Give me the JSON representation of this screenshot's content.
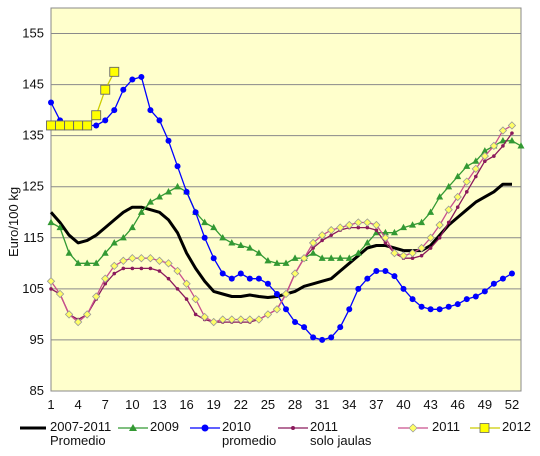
{
  "chart_data": {
    "type": "line",
    "title": "",
    "xlabel": "",
    "ylabel": "Euro/100 kg",
    "xlim": [
      1,
      53
    ],
    "ylim": [
      85,
      160
    ],
    "y_ticks": [
      85,
      95,
      105,
      115,
      125,
      135,
      145,
      155
    ],
    "x_ticks": [
      1,
      4,
      7,
      10,
      13,
      16,
      19,
      22,
      25,
      28,
      31,
      34,
      37,
      40,
      43,
      46,
      49,
      52
    ],
    "grid": "horizontal",
    "background": "#ffffcc",
    "legend_position": "bottom",
    "series": [
      {
        "name": "2007-2011\nPromedio",
        "color": "#000000",
        "marker": "none",
        "x": [
          1,
          2,
          3,
          4,
          5,
          6,
          7,
          8,
          9,
          10,
          11,
          12,
          13,
          14,
          15,
          16,
          17,
          18,
          19,
          20,
          21,
          22,
          23,
          24,
          25,
          26,
          27,
          28,
          29,
          30,
          31,
          32,
          33,
          34,
          35,
          36,
          37,
          38,
          39,
          40,
          41,
          42,
          43,
          44,
          45,
          46,
          47,
          48,
          49,
          50,
          51,
          52
        ],
        "y": [
          120,
          118,
          115.5,
          114,
          114.5,
          115.5,
          117,
          118.5,
          120,
          121,
          121,
          120.5,
          120,
          118.5,
          116,
          112,
          109,
          106.5,
          104.5,
          104,
          103.5,
          103.5,
          103.8,
          103.5,
          103.3,
          103.5,
          104,
          104.5,
          105.5,
          106,
          106.5,
          107,
          108.5,
          110,
          111.5,
          113,
          113.5,
          113.5,
          113,
          112.5,
          112.5,
          112.5,
          113.5,
          115.5,
          117.5,
          119,
          120.5,
          122,
          123,
          124,
          125.5,
          125.5
        ]
      },
      {
        "name": "2009",
        "color": "#339933",
        "marker": "triangle",
        "x": [
          1,
          2,
          3,
          4,
          5,
          6,
          7,
          8,
          9,
          10,
          11,
          12,
          13,
          14,
          15,
          16,
          17,
          18,
          19,
          20,
          21,
          22,
          23,
          24,
          25,
          26,
          27,
          28,
          29,
          30,
          31,
          32,
          33,
          34,
          35,
          36,
          37,
          38,
          39,
          40,
          41,
          42,
          43,
          44,
          45,
          46,
          47,
          48,
          49,
          50,
          51,
          52,
          53
        ],
        "y": [
          118,
          117,
          112,
          110,
          110,
          110,
          112,
          114,
          115,
          117,
          120,
          122,
          123,
          124,
          125,
          124,
          120,
          118,
          117,
          115,
          114,
          113.5,
          113,
          112,
          110.5,
          110,
          110,
          111,
          111,
          112,
          111,
          111,
          111,
          111,
          112,
          114,
          116,
          116,
          116,
          117,
          117.5,
          118,
          120,
          123,
          125,
          127,
          129,
          130,
          132,
          133,
          134,
          134,
          133
        ]
      },
      {
        "name": "2010\npromedio",
        "color": "#0000ff",
        "marker": "circle",
        "x": [
          1,
          2,
          3,
          4,
          5,
          6,
          7,
          8,
          9,
          10,
          11,
          12,
          13,
          14,
          15,
          16,
          17,
          18,
          19,
          20,
          21,
          22,
          23,
          24,
          25,
          26,
          27,
          28,
          29,
          30,
          31,
          32,
          33,
          34,
          35,
          36,
          37,
          38,
          39,
          40,
          41,
          42,
          43,
          44,
          45,
          46,
          47,
          48,
          49,
          50,
          51,
          52
        ],
        "y": [
          141.5,
          138,
          137,
          137,
          137,
          137,
          138,
          140,
          144,
          146,
          146.5,
          140,
          138,
          134,
          129,
          124,
          120,
          115,
          111,
          108,
          107,
          108,
          107,
          107,
          106,
          104,
          101,
          98.5,
          97.5,
          95.5,
          95,
          95.5,
          97.5,
          101,
          105,
          107,
          108.5,
          108.5,
          107.5,
          105,
          103,
          101.5,
          101,
          101,
          101.5,
          102,
          103,
          103.5,
          104.5,
          106,
          107,
          108
        ]
      },
      {
        "name": "2011\nsolo jaulas",
        "color": "#8b1a5c",
        "marker": "dot",
        "x": [
          1,
          2,
          3,
          4,
          5,
          6,
          7,
          8,
          9,
          10,
          11,
          12,
          13,
          14,
          15,
          16,
          17,
          18,
          19,
          20,
          21,
          22,
          23,
          24,
          25,
          26,
          27,
          28,
          29,
          30,
          31,
          32,
          33,
          34,
          35,
          36,
          37,
          38,
          39,
          40,
          41,
          42,
          43,
          44,
          45,
          46,
          47,
          48,
          49,
          50,
          51,
          52
        ],
        "y": [
          105,
          104,
          100,
          99,
          100,
          103,
          106,
          108,
          109,
          109,
          109,
          109,
          108.5,
          107,
          105,
          103,
          100,
          99,
          98.5,
          98.5,
          98.5,
          98.5,
          98.5,
          99,
          100,
          101,
          104,
          108,
          111,
          113,
          114.5,
          115.5,
          116.5,
          117,
          117,
          117,
          116.5,
          114,
          112,
          111,
          111,
          111.5,
          113,
          115,
          118,
          121,
          124,
          127,
          130,
          131,
          133,
          135.5
        ]
      },
      {
        "name": "2011",
        "color": "#c9508d",
        "marker": "diamond",
        "x": [
          1,
          2,
          3,
          4,
          5,
          6,
          7,
          8,
          9,
          10,
          11,
          12,
          13,
          14,
          15,
          16,
          17,
          18,
          19,
          20,
          21,
          22,
          23,
          24,
          25,
          26,
          27,
          28,
          29,
          30,
          31,
          32,
          33,
          34,
          35,
          36,
          37,
          38,
          39,
          40,
          41,
          42,
          43,
          44,
          45,
          46,
          47,
          48,
          49,
          50,
          51,
          52
        ],
        "y": [
          106.5,
          104,
          100,
          98.5,
          100,
          103.5,
          107,
          109.5,
          110.5,
          111,
          111,
          111,
          110.5,
          110,
          108.5,
          106,
          103,
          99.5,
          98.5,
          99,
          99,
          99,
          99,
          99,
          100,
          101,
          104,
          108,
          111,
          114,
          115.5,
          116.5,
          117,
          117.5,
          118,
          118,
          117.5,
          115,
          112,
          111.5,
          112,
          113,
          115,
          117.5,
          120.5,
          123,
          126,
          128.5,
          131,
          133,
          136,
          137
        ]
      },
      {
        "name": "2012",
        "color": "#cccc00",
        "marker": "square",
        "x": [
          1,
          2,
          3,
          4,
          5,
          6,
          7,
          8
        ],
        "y": [
          137,
          137,
          137,
          137,
          137,
          139,
          144,
          147.5
        ]
      }
    ]
  }
}
